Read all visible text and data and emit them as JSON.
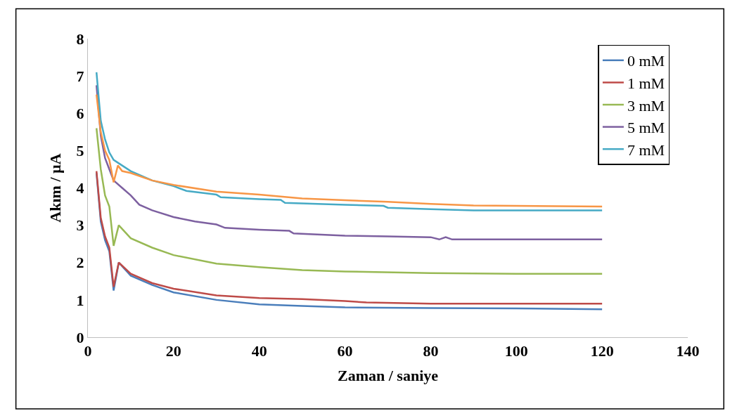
{
  "chart_data": {
    "type": "line",
    "xlabel": "Zaman / saniye",
    "ylabel": "Akım / µA",
    "xlim": [
      0,
      140
    ],
    "xticks": [
      0,
      20,
      40,
      60,
      80,
      100,
      120,
      140
    ],
    "ylim": [
      0,
      8
    ],
    "yticks": [
      0,
      1,
      2,
      3,
      4,
      5,
      6,
      7,
      8
    ],
    "legend": "top right",
    "marker": "none",
    "line_style": "solid",
    "series": [
      {
        "name": "0 mM",
        "color": "#4a7ebb",
        "x": [
          2,
          3,
          4,
          5,
          6,
          7.2,
          10,
          15,
          20,
          30,
          40,
          50,
          60,
          80,
          100,
          120
        ],
        "values": [
          4.4,
          3.1,
          2.6,
          2.3,
          1.25,
          2.0,
          1.65,
          1.4,
          1.2,
          1.0,
          0.88,
          0.84,
          0.8,
          0.78,
          0.77,
          0.75
        ]
      },
      {
        "name": "1 mM",
        "color": "#be4b48",
        "x": [
          2,
          3,
          4,
          5,
          6,
          7.2,
          10,
          15,
          20,
          30,
          40,
          50,
          60,
          65,
          80,
          100,
          120
        ],
        "values": [
          4.45,
          3.2,
          2.7,
          2.4,
          1.35,
          2.0,
          1.7,
          1.45,
          1.3,
          1.12,
          1.05,
          1.02,
          0.97,
          0.93,
          0.9,
          0.9,
          0.9
        ]
      },
      {
        "name": "3 mM",
        "color": "#98b954",
        "x": [
          2,
          3,
          4,
          5,
          6,
          7.2,
          10,
          15,
          20,
          30,
          40,
          50,
          60,
          80,
          100,
          120
        ],
        "values": [
          5.6,
          4.5,
          3.8,
          3.5,
          2.45,
          3.0,
          2.65,
          2.4,
          2.2,
          1.97,
          1.88,
          1.8,
          1.76,
          1.72,
          1.7,
          1.7
        ]
      },
      {
        "name": "5 mM",
        "color": "#7d60a0",
        "x": [
          2,
          3,
          4,
          5,
          6,
          8,
          10,
          12,
          15,
          20,
          25,
          30,
          32,
          40,
          47,
          48,
          60,
          70,
          80,
          82,
          83.5,
          85,
          100,
          120
        ],
        "values": [
          6.75,
          5.4,
          4.8,
          4.5,
          4.2,
          4.0,
          3.8,
          3.55,
          3.4,
          3.22,
          3.1,
          3.02,
          2.93,
          2.88,
          2.85,
          2.78,
          2.72,
          2.7,
          2.68,
          2.62,
          2.68,
          2.62,
          2.62,
          2.62
        ]
      },
      {
        "name": "7 mM",
        "color": "#46aac5",
        "x": [
          2,
          3,
          4,
          5,
          6,
          8,
          10,
          15,
          20,
          23,
          30,
          31,
          40,
          45,
          46,
          60,
          69,
          70,
          80,
          90,
          100,
          120
        ],
        "values": [
          7.1,
          5.8,
          5.3,
          4.95,
          4.75,
          4.6,
          4.45,
          4.2,
          4.05,
          3.92,
          3.82,
          3.75,
          3.7,
          3.68,
          3.6,
          3.55,
          3.52,
          3.47,
          3.43,
          3.4,
          3.4,
          3.4
        ]
      },
      {
        "color": "#f79646",
        "x": [
          2,
          3,
          4,
          5,
          6,
          7,
          8,
          10,
          15,
          20,
          30,
          40,
          50,
          60,
          70,
          80,
          90,
          100,
          120
        ],
        "values": [
          6.5,
          5.5,
          5.0,
          4.75,
          4.15,
          4.6,
          4.45,
          4.4,
          4.2,
          4.08,
          3.9,
          3.82,
          3.72,
          3.67,
          3.63,
          3.57,
          3.53,
          3.52,
          3.5
        ]
      }
    ]
  }
}
